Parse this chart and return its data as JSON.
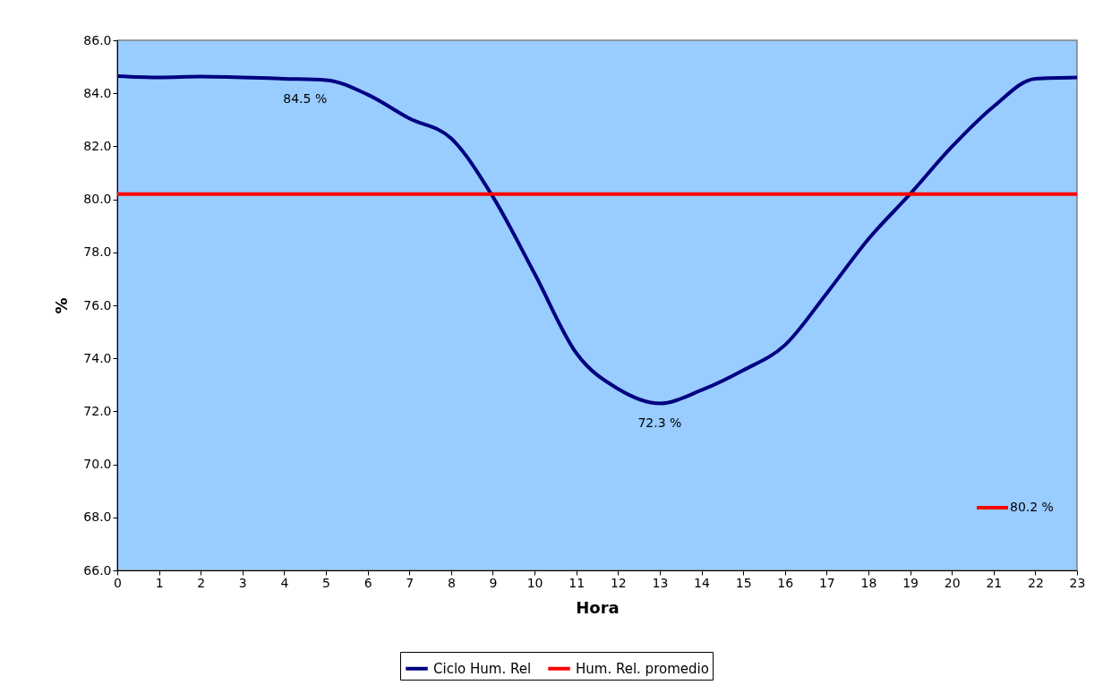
{
  "chart_data": {
    "type": "line",
    "xlabel": "Hora",
    "ylabel": "%",
    "x": [
      0,
      1,
      2,
      3,
      4,
      5,
      6,
      7,
      8,
      9,
      10,
      11,
      12,
      13,
      14,
      15,
      16,
      17,
      18,
      19,
      20,
      21,
      22,
      23
    ],
    "series": [
      {
        "name": "Ciclo Hum. Rel",
        "color": "#000080",
        "values": [
          84.65,
          84.6,
          84.63,
          84.6,
          84.55,
          84.5,
          83.95,
          83.05,
          82.3,
          80.1,
          77.2,
          74.2,
          72.85,
          72.3,
          72.8,
          73.55,
          74.5,
          76.45,
          78.5,
          80.2,
          81.98,
          83.5,
          84.55,
          84.6
        ]
      },
      {
        "name": "Hum. Rel. promedio",
        "color": "#ff0000",
        "values": [
          80.2,
          80.2,
          80.2,
          80.2,
          80.2,
          80.2,
          80.2,
          80.2,
          80.2,
          80.2,
          80.2,
          80.2,
          80.2,
          80.2,
          80.2,
          80.2,
          80.2,
          80.2,
          80.2,
          80.2,
          80.2,
          80.2,
          80.2,
          80.2
        ]
      }
    ],
    "annotations": [
      {
        "text": "84.5 %",
        "x": 4.5,
        "y": 84.5
      },
      {
        "text": "72.3 %",
        "x": 13,
        "y": 72.3
      },
      "80.2 %"
    ],
    "xlim": [
      0,
      23
    ],
    "xticks": [
      0,
      1,
      2,
      3,
      4,
      5,
      6,
      7,
      8,
      9,
      10,
      11,
      12,
      13,
      14,
      15,
      16,
      17,
      18,
      19,
      20,
      21,
      22,
      23
    ],
    "ylim": [
      66,
      86
    ],
    "yticks": [
      {
        "value": 66,
        "label": "66.0"
      },
      {
        "value": 68,
        "label": "68.0"
      },
      {
        "value": 70,
        "label": "70.0"
      },
      {
        "value": 72,
        "label": "72.0"
      },
      {
        "value": 74,
        "label": "74.0"
      },
      {
        "value": 76,
        "label": "76.0"
      },
      {
        "value": 78,
        "label": "78.0"
      },
      {
        "value": 80,
        "label": "80.0"
      },
      {
        "value": 82,
        "label": "82.0"
      },
      {
        "value": 84,
        "label": "84.0"
      },
      {
        "value": 86,
        "label": "86.0"
      }
    ],
    "grid": false,
    "legend": "bottom",
    "marker": "none",
    "line_style": "solid"
  }
}
